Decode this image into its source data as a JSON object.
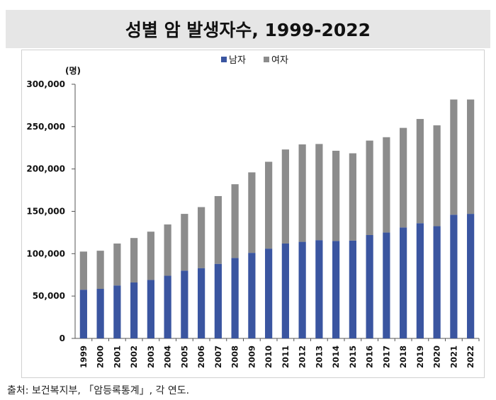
{
  "title": "성별 암 발생자수, 1999-2022",
  "source": "출처: 보건복지부, 「암등록통계」, 각 연도.",
  "chart_data": {
    "type": "bar",
    "stacked": true,
    "unit_label": "(명)",
    "categories": [
      "1999",
      "2000",
      "2001",
      "2002",
      "2003",
      "2004",
      "2005",
      "2006",
      "2007",
      "2008",
      "2009",
      "2010",
      "2011",
      "2012",
      "2013",
      "2014",
      "2015",
      "2016",
      "2017",
      "2018",
      "2019",
      "2020",
      "2021",
      "2022"
    ],
    "series": [
      {
        "name": "남자",
        "color": "#3a55a0",
        "values": [
          57500,
          58500,
          62500,
          66000,
          69000,
          74000,
          80000,
          83000,
          88000,
          95000,
          101000,
          106000,
          112000,
          114000,
          116000,
          115000,
          115500,
          122000,
          125000,
          131000,
          136000,
          132500,
          146000,
          147000
        ]
      },
      {
        "name": "여자",
        "color": "#8c8c8c",
        "values": [
          45000,
          45000,
          49500,
          52500,
          57000,
          60500,
          67000,
          72000,
          80000,
          87000,
          95000,
          102500,
          111000,
          115000,
          113500,
          106500,
          103000,
          111500,
          112500,
          117500,
          123000,
          119000,
          136000,
          135000
        ]
      }
    ],
    "ylim": [
      0,
      300000
    ],
    "yticks": [
      0,
      50000,
      100000,
      150000,
      200000,
      250000,
      300000
    ],
    "ytick_labels": [
      "0",
      "50,000",
      "100,000",
      "150,000",
      "200,000",
      "250,000",
      "300,000"
    ],
    "legend_position": "top",
    "grid": false
  }
}
